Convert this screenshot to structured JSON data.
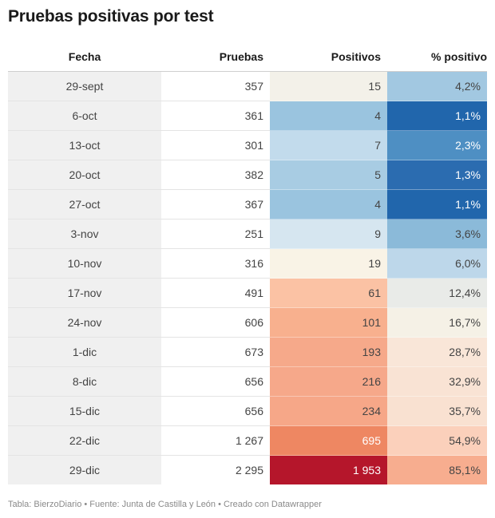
{
  "title": "Pruebas positivas por test",
  "footer": "Tabla: BierzoDiario • Fuente: Junta de Castilla y León • Creado con Datawrapper",
  "chart_data": {
    "type": "table",
    "columns": [
      "Fecha",
      "Pruebas",
      "Positivos",
      "% positivo"
    ],
    "rows": [
      {
        "fecha": "29-sept",
        "pruebas": "357",
        "positivos": "15",
        "pct": "4,2%",
        "pos_color": "#f3f1e9",
        "pct_color": "#a2c8e1",
        "pos_text": "#444444",
        "pct_text": "#444444"
      },
      {
        "fecha": "6-oct",
        "pruebas": "361",
        "positivos": "4",
        "pct": "1,1%",
        "pos_color": "#9ac4df",
        "pct_color": "#2166ac",
        "pos_text": "#444444",
        "pct_text": "#ffffff"
      },
      {
        "fecha": "13-oct",
        "pruebas": "301",
        "positivos": "7",
        "pct": "2,3%",
        "pos_color": "#c2dbec",
        "pct_color": "#4e8fc3",
        "pos_text": "#444444",
        "pct_text": "#ffffff"
      },
      {
        "fecha": "20-oct",
        "pruebas": "382",
        "positivos": "5",
        "pct": "1,3%",
        "pos_color": "#a8cce3",
        "pct_color": "#2b6cb0",
        "pos_text": "#444444",
        "pct_text": "#ffffff"
      },
      {
        "fecha": "27-oct",
        "pruebas": "367",
        "positivos": "4",
        "pct": "1,1%",
        "pos_color": "#9ac4df",
        "pct_color": "#2166ac",
        "pos_text": "#444444",
        "pct_text": "#ffffff"
      },
      {
        "fecha": "3-nov",
        "pruebas": "251",
        "positivos": "9",
        "pct": "3,6%",
        "pos_color": "#d6e6f0",
        "pct_color": "#8bbad9",
        "pos_text": "#444444",
        "pct_text": "#444444"
      },
      {
        "fecha": "10-nov",
        "pruebas": "316",
        "positivos": "19",
        "pct": "6,0%",
        "pos_color": "#f9f3e6",
        "pct_color": "#bdd7ea",
        "pos_text": "#444444",
        "pct_text": "#444444"
      },
      {
        "fecha": "17-nov",
        "pruebas": "491",
        "positivos": "61",
        "pct": "12,4%",
        "pos_color": "#fbc2a4",
        "pct_color": "#e9ebe8",
        "pos_text": "#444444",
        "pct_text": "#444444"
      },
      {
        "fecha": "24-nov",
        "pruebas": "606",
        "positivos": "101",
        "pct": "16,7%",
        "pos_color": "#f8b08e",
        "pct_color": "#f5f1e6",
        "pos_text": "#444444",
        "pct_text": "#444444"
      },
      {
        "fecha": "1-dic",
        "pruebas": "673",
        "positivos": "193",
        "pct": "28,7%",
        "pos_color": "#f6a98a",
        "pct_color": "#f9e6d8",
        "pos_text": "#444444",
        "pct_text": "#444444"
      },
      {
        "fecha": "8-dic",
        "pruebas": "656",
        "positivos": "216",
        "pct": "32,9%",
        "pos_color": "#f6a88a",
        "pct_color": "#f9e3d4",
        "pos_text": "#444444",
        "pct_text": "#444444"
      },
      {
        "fecha": "15-dic",
        "pruebas": "656",
        "positivos": "234",
        "pct": "35,7%",
        "pos_color": "#f6a788",
        "pct_color": "#f9e1d1",
        "pos_text": "#444444",
        "pct_text": "#444444"
      },
      {
        "fecha": "22-dic",
        "pruebas": "1 267",
        "positivos": "695",
        "pct": "54,9%",
        "pos_color": "#ee8762",
        "pct_color": "#fbd0bb",
        "pos_text": "#ffffff",
        "pct_text": "#444444"
      },
      {
        "fecha": "29-dic",
        "pruebas": "2 295",
        "positivos": "1 953",
        "pct": "85,1%",
        "pos_color": "#b5162b",
        "pct_color": "#f7ad8f",
        "pos_text": "#ffffff",
        "pct_text": "#444444"
      }
    ]
  }
}
